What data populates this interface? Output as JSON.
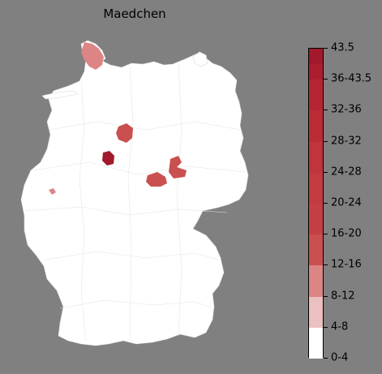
{
  "title": "Maedchen",
  "colorbar": {
    "labels": [
      "43.5",
      "36-43.5",
      "32-36",
      "28-32",
      "24-28",
      "20-24",
      "16-20",
      "12-16",
      "8-12",
      "4-8",
      "0-4"
    ],
    "colors": [
      "#a1192b",
      "#ab1e2f",
      "#b52533",
      "#bc2c36",
      "#c0343b",
      "#c33a3f",
      "#c43f43",
      "#c9504f",
      "#dd8585",
      "#ecc0c0",
      "#ffffff"
    ]
  },
  "map": {
    "country": "Germany",
    "base_color": "#ffffff",
    "border_color": "#d8d8d8"
  }
}
